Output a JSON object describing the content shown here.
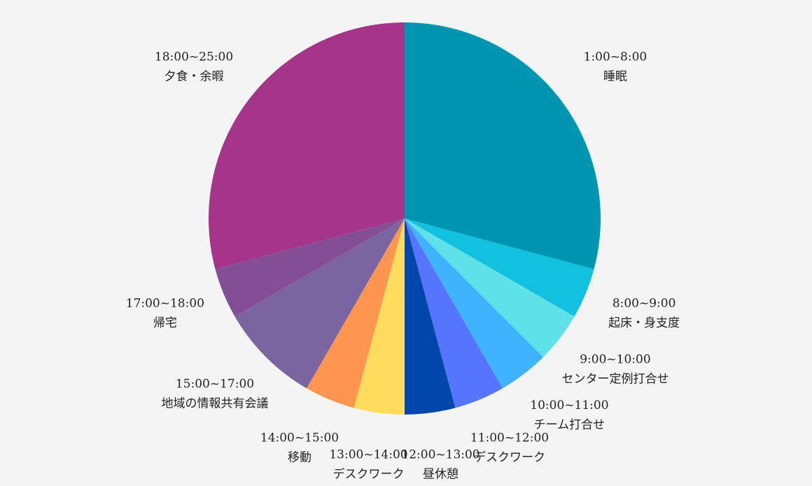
{
  "chart_data": {
    "type": "pie",
    "time_ranges": [
      "1:00~8:00",
      "8:00~9:00",
      "9:00~10:00",
      "10:00~11:00",
      "11:00~12:00",
      "12:00~13:00",
      "13:00~14:00",
      "14:00~15:00",
      "15:00~17:00",
      "17:00~18:00",
      "18:00~25:00"
    ],
    "categories": [
      "睡眠",
      "起床・身支度",
      "センター定例打合せ",
      "チーム打合せ",
      "デスクワーク",
      "昼休憩",
      "デスクワーク",
      "移動",
      "地域の情報共有会議",
      "帰宅",
      "夕食・余暇"
    ],
    "values": [
      7,
      1,
      1,
      1,
      1,
      1,
      1,
      1,
      2,
      1,
      7
    ],
    "colors": [
      "#0096b1",
      "#12c0df",
      "#5fe1e8",
      "#3fb3fe",
      "#5675ff",
      "#0047ab",
      "#ffdc5e",
      "#ff964f",
      "#7a65a0",
      "#844e96",
      "#a5358a"
    ]
  }
}
